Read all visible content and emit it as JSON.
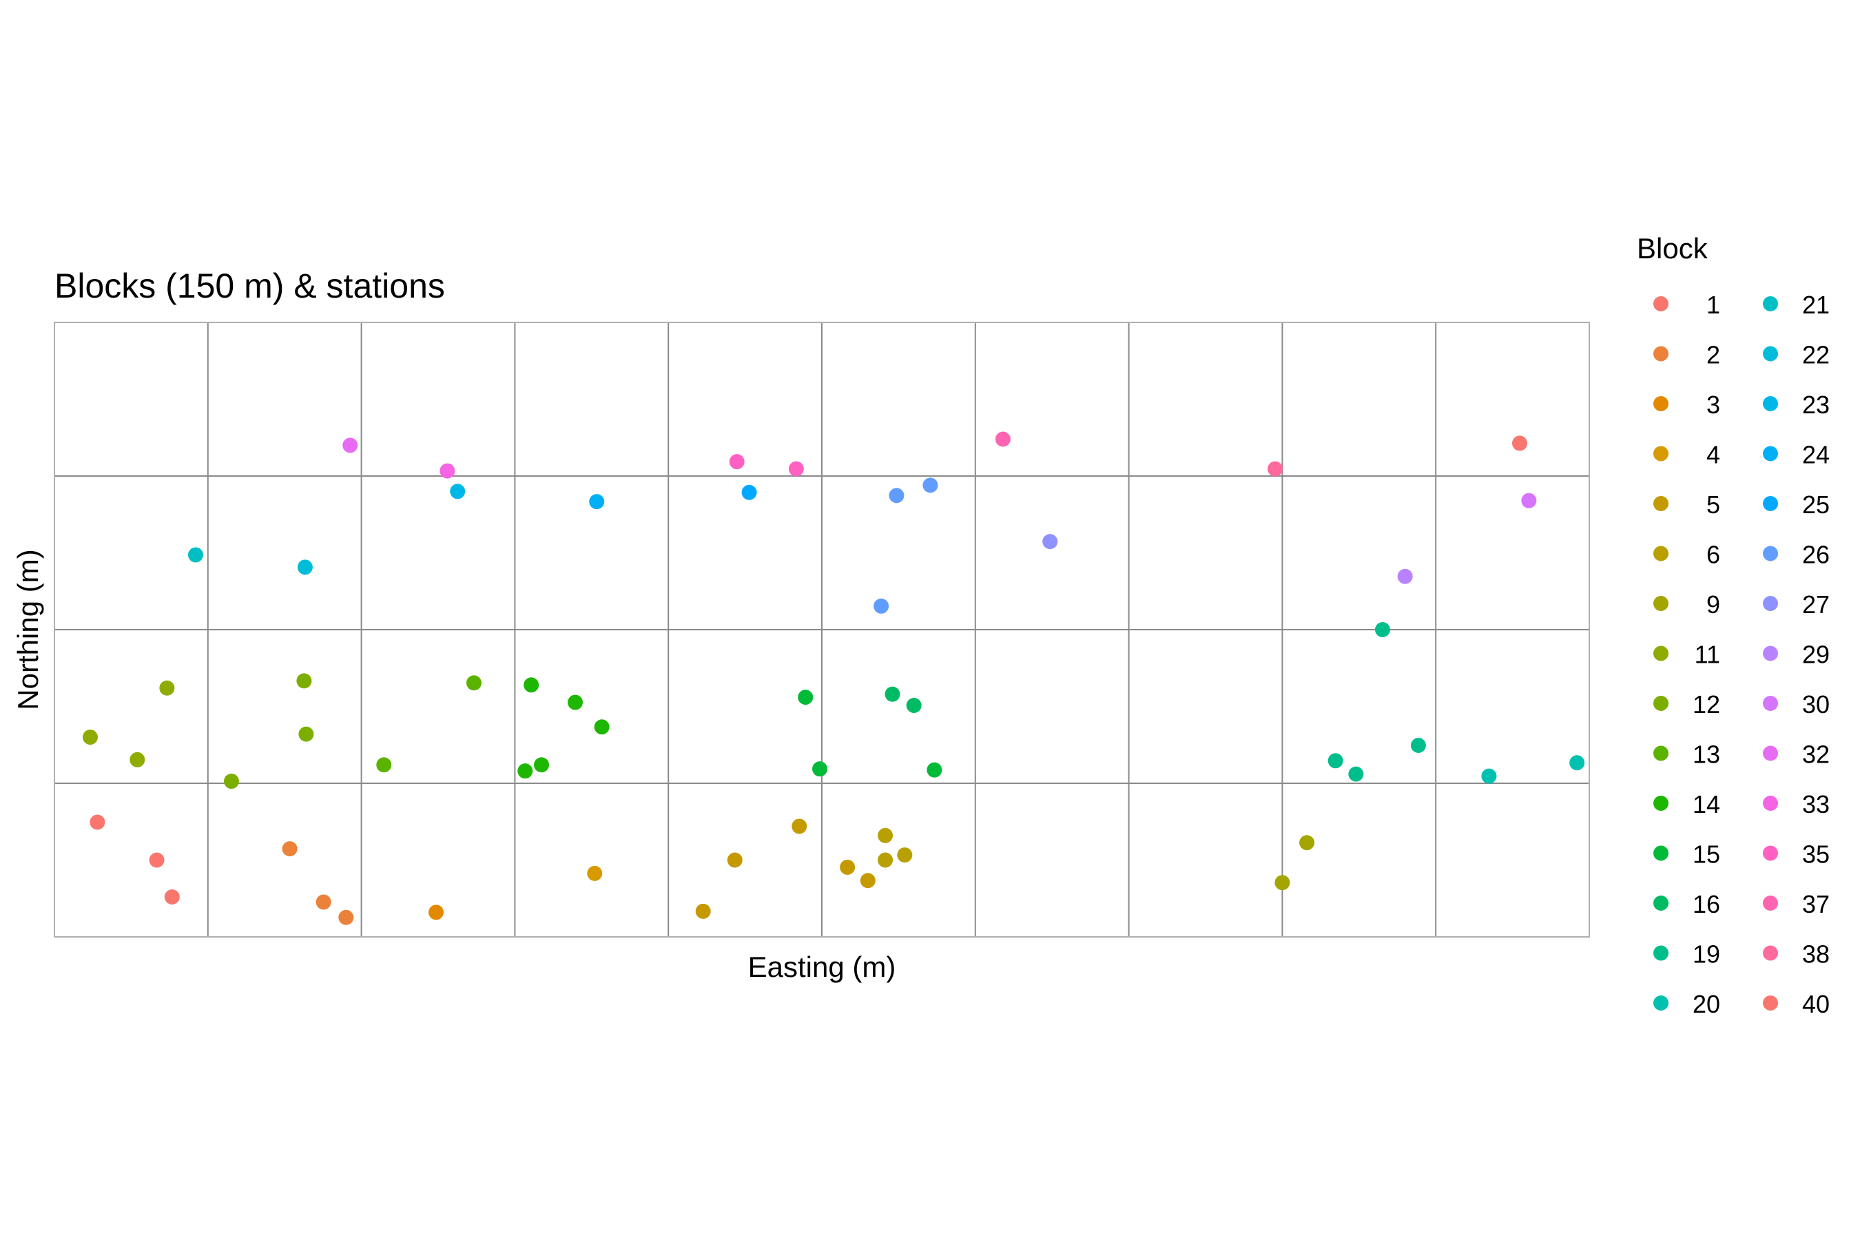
{
  "chart_data": {
    "type": "scatter",
    "title": "Blocks (150 m) & stations",
    "xlabel": "Easting (m)",
    "ylabel": "Northing (m)",
    "xlim": [
      0,
      1500
    ],
    "ylim": [
      0,
      600
    ],
    "grid": true,
    "grid_x": [
      0,
      150,
      300,
      450,
      600,
      750,
      900,
      1050,
      1200,
      1350,
      1500
    ],
    "grid_y": [
      0,
      150,
      300,
      450,
      600
    ],
    "x_ticks_shown": false,
    "y_ticks_shown": false,
    "legend": {
      "title": "Block",
      "placement": "right",
      "columns": 2
    },
    "series": [
      {
        "name": "1",
        "color": "#F8766D",
        "points": [
          [
            42,
            112
          ],
          [
            100,
            75
          ],
          [
            115,
            39
          ]
        ]
      },
      {
        "name": "2",
        "color": "#EC8239",
        "points": [
          [
            230,
            86
          ],
          [
            263,
            34
          ],
          [
            285,
            19
          ]
        ]
      },
      {
        "name": "3",
        "color": "#E38900",
        "points": [
          [
            373,
            24
          ]
        ]
      },
      {
        "name": "4",
        "color": "#D79A00",
        "points": [
          [
            528,
            62
          ]
        ]
      },
      {
        "name": "5",
        "color": "#C49A00",
        "points": [
          [
            634,
            25
          ],
          [
            665,
            75
          ],
          [
            728,
            108
          ],
          [
            775,
            68
          ],
          [
            795,
            55
          ]
        ]
      },
      {
        "name": "6",
        "color": "#B8A000",
        "points": [
          [
            812,
            99
          ],
          [
            812,
            75
          ],
          [
            831,
            80
          ]
        ]
      },
      {
        "name": "9",
        "color": "#A3A500",
        "points": [
          [
            1200,
            53
          ],
          [
            1224,
            92
          ]
        ]
      },
      {
        "name": "11",
        "color": "#8EAB00",
        "points": [
          [
            35,
            195
          ],
          [
            81,
            173
          ],
          [
            110,
            243
          ]
        ]
      },
      {
        "name": "12",
        "color": "#7CAE00",
        "points": [
          [
            173,
            152
          ],
          [
            244,
            250
          ],
          [
            246,
            198
          ]
        ]
      },
      {
        "name": "13",
        "color": "#5BB300",
        "points": [
          [
            322,
            168
          ],
          [
            410,
            248
          ]
        ]
      },
      {
        "name": "14",
        "color": "#1DB700",
        "points": [
          [
            460,
            162
          ],
          [
            466,
            246
          ],
          [
            476,
            168
          ],
          [
            509,
            229
          ],
          [
            535,
            205
          ]
        ]
      },
      {
        "name": "15",
        "color": "#00BA38",
        "points": [
          [
            748,
            164
          ],
          [
            734,
            234
          ],
          [
            860,
            163
          ]
        ]
      },
      {
        "name": "16",
        "color": "#00BB63",
        "points": [
          [
            819,
            237
          ],
          [
            840,
            226
          ]
        ]
      },
      {
        "name": "19",
        "color": "#00BE8C",
        "points": [
          [
            1252,
            172
          ],
          [
            1272,
            159
          ],
          [
            1298,
            300
          ],
          [
            1333,
            187
          ]
        ]
      },
      {
        "name": "20",
        "color": "#00C0AF",
        "points": [
          [
            1402,
            157
          ],
          [
            1488,
            170
          ]
        ]
      },
      {
        "name": "21",
        "color": "#00BFC4",
        "points": [
          [
            138,
            373
          ]
        ]
      },
      {
        "name": "22",
        "color": "#00BCD8",
        "points": [
          [
            245,
            361
          ]
        ]
      },
      {
        "name": "23",
        "color": "#00B8E7",
        "points": [
          [
            394,
            435
          ]
        ]
      },
      {
        "name": "24",
        "color": "#00B0F6",
        "points": [
          [
            530,
            425
          ]
        ]
      },
      {
        "name": "25",
        "color": "#00A9FF",
        "points": [
          [
            679,
            434
          ]
        ]
      },
      {
        "name": "26",
        "color": "#619CFF",
        "points": [
          [
            808,
            323
          ],
          [
            823,
            431
          ],
          [
            856,
            441
          ]
        ]
      },
      {
        "name": "27",
        "color": "#8F91FF",
        "points": [
          [
            973,
            386
          ]
        ]
      },
      {
        "name": "29",
        "color": "#B983FF",
        "points": [
          [
            1320,
            352
          ]
        ]
      },
      {
        "name": "30",
        "color": "#D575FE",
        "points": [
          [
            1441,
            426
          ]
        ]
      },
      {
        "name": "32",
        "color": "#E76BF3",
        "points": [
          [
            289,
            480
          ]
        ]
      },
      {
        "name": "33",
        "color": "#F564E3",
        "points": [
          [
            384,
            455
          ]
        ]
      },
      {
        "name": "35",
        "color": "#FF61C3",
        "points": [
          [
            667,
            464
          ],
          [
            725,
            457
          ]
        ]
      },
      {
        "name": "37",
        "color": "#FF64B0",
        "points": [
          [
            927,
            486
          ]
        ]
      },
      {
        "name": "38",
        "color": "#FF699C",
        "points": [
          [
            1193,
            457
          ]
        ]
      },
      {
        "name": "40",
        "color": "#F8766D",
        "points": [
          [
            1432,
            482
          ]
        ]
      }
    ]
  }
}
